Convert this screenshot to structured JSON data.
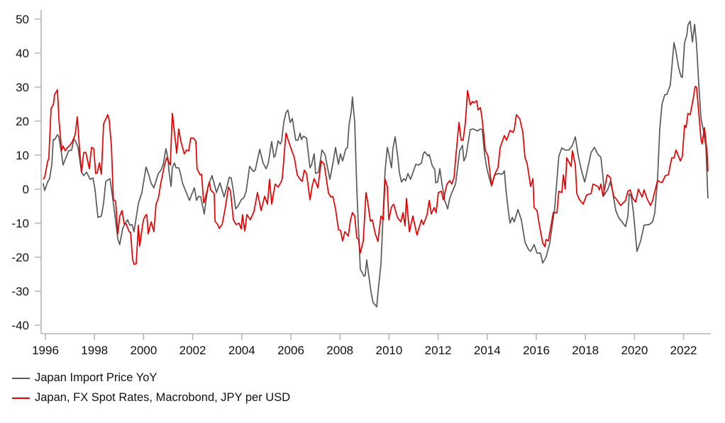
{
  "chart_data": {
    "type": "line",
    "title": "",
    "xlabel": "",
    "ylabel": "",
    "xlim": [
      1995.9,
      2023.0
    ],
    "ylim": [
      -40,
      50
    ],
    "grid": false,
    "legend_placement": "bottom-left",
    "yticks": [
      "50",
      "40",
      "30",
      "20",
      "10",
      "0",
      "-10",
      "-20",
      "-30",
      "-40"
    ],
    "ytick_values": [
      50,
      40,
      30,
      20,
      10,
      0,
      -10,
      -20,
      -30,
      -40
    ],
    "xticks": [
      "1996",
      "1998",
      "2000",
      "2002",
      "2004",
      "2006",
      "2008",
      "2010",
      "2012",
      "2014",
      "2016",
      "2018",
      "2020",
      "2022"
    ],
    "xtick_values": [
      1996,
      1998,
      2000,
      2002,
      2004,
      2006,
      2008,
      2010,
      2012,
      2014,
      2016,
      2018,
      2020,
      2022
    ],
    "series": [
      {
        "name": "Japan Import Price YoY",
        "color": "#595959",
        "x": [
          1995.91,
          1995.97,
          1996.09,
          1996.17,
          1996.26,
          1996.32,
          1996.38,
          1996.49,
          1996.55,
          1996.66,
          1996.72,
          1996.84,
          1996.95,
          1997.07,
          1997.16,
          1997.24,
          1997.33,
          1997.47,
          1997.56,
          1997.68,
          1997.82,
          1997.94,
          1998.02,
          1998.14,
          1998.28,
          1998.37,
          1998.46,
          1998.63,
          1998.75,
          1998.83,
          1998.95,
          1999.03,
          1999.15,
          1999.24,
          1999.35,
          1999.44,
          1999.53,
          1999.61,
          1999.79,
          1999.93,
          2000.1,
          2000.22,
          2000.31,
          2000.42,
          2000.6,
          2000.71,
          2000.8,
          2000.91,
          2001.0,
          2001.03,
          2001.12,
          2001.17,
          2001.26,
          2001.32,
          2001.43,
          2001.49,
          2001.58,
          2001.72,
          2001.87,
          2001.95,
          2002.07,
          2002.16,
          2002.24,
          2002.33,
          2002.47,
          2002.62,
          2002.79,
          2002.97,
          2003.11,
          2003.28,
          2003.4,
          2003.49,
          2003.57,
          2003.66,
          2003.75,
          2003.86,
          2003.98,
          2004.09,
          2004.18,
          2004.32,
          2004.47,
          2004.55,
          2004.73,
          2004.87,
          2004.99,
          2005.08,
          2005.22,
          2005.31,
          2005.36,
          2005.48,
          2005.57,
          2005.62,
          2005.71,
          2005.8,
          2005.88,
          2005.97,
          2006.06,
          2006.2,
          2006.29,
          2006.38,
          2006.43,
          2006.52,
          2006.64,
          2006.78,
          2006.84,
          2006.95,
          2007.01,
          2007.13,
          2007.27,
          2007.39,
          2007.59,
          2007.73,
          2007.82,
          2007.94,
          2008.02,
          2008.11,
          2008.23,
          2008.31,
          2008.37,
          2008.46,
          2008.51,
          2008.6,
          2008.69,
          2008.83,
          2008.98,
          2009.03,
          2009.09,
          2009.27,
          2009.35,
          2009.5,
          2009.55,
          2009.67,
          2009.76,
          2009.84,
          2009.93,
          2009.99,
          2010.1,
          2010.16,
          2010.25,
          2010.36,
          2010.42,
          2010.51,
          2010.6,
          2010.68,
          2010.77,
          2010.88,
          2011.09,
          2011.2,
          2011.32,
          2011.4,
          2011.46,
          2011.58,
          2011.64,
          2011.75,
          2011.87,
          2011.9,
          2011.98,
          2012.07,
          2012.16,
          2012.27,
          2012.39,
          2012.47,
          2012.56,
          2012.71,
          2012.79,
          2012.88,
          2012.99,
          2013.05,
          2013.14,
          2013.23,
          2013.31,
          2013.43,
          2013.51,
          2013.6,
          2013.72,
          2013.8,
          2013.89,
          2013.98,
          2014.09,
          2014.18,
          2014.29,
          2014.44,
          2014.61,
          2014.7,
          2014.76,
          2014.87,
          2014.93,
          2015.02,
          2015.1,
          2015.25,
          2015.39,
          2015.54,
          2015.68,
          2015.77,
          2015.91,
          2016.03,
          2016.17,
          2016.26,
          2016.4,
          2016.55,
          2016.75,
          2016.92,
          2017.04,
          2017.18,
          2017.33,
          2017.47,
          2017.59,
          2017.71,
          2017.85,
          2017.97,
          2018.08,
          2018.23,
          2018.37,
          2018.51,
          2018.63,
          2018.72,
          2018.77,
          2018.92,
          2019.01,
          2019.09,
          2019.24,
          2019.35,
          2019.64,
          2019.73,
          2019.79,
          2019.87,
          2019.96,
          2020.1,
          2020.25,
          2020.39,
          2020.6,
          2020.74,
          2020.83,
          2020.94,
          2021.03,
          2021.12,
          2021.23,
          2021.32,
          2021.46,
          2021.61,
          2021.69,
          2021.81,
          2021.9,
          2021.95,
          2022.04,
          2022.13,
          2022.18,
          2022.27,
          2022.36,
          2022.45,
          2022.53,
          2022.62,
          2022.71,
          2022.82,
          2022.91,
          2022.99
        ],
        "y": [
          1.7,
          -0.4,
          2.1,
          3.1,
          7.1,
          14.6,
          14.6,
          16.0,
          15.4,
          10.4,
          7.1,
          9.4,
          11.3,
          11.5,
          14.8,
          14.0,
          12.3,
          5.0,
          4.0,
          5.0,
          2.9,
          3.3,
          0,
          -8.3,
          -7.9,
          -4.2,
          2.3,
          3.1,
          -3.1,
          -7.5,
          -14.6,
          -16.3,
          -11.5,
          -10.2,
          -9.0,
          -10.6,
          -10.4,
          -12.5,
          -4.2,
          -1.0,
          6.5,
          4.0,
          1.7,
          0.4,
          4.6,
          5.6,
          7.3,
          11.9,
          8.8,
          5.6,
          0.8,
          6.3,
          7.7,
          6.3,
          6.3,
          5.0,
          1.9,
          -0.6,
          -3.3,
          -1.7,
          0.4,
          -3.3,
          -2.1,
          -2.3,
          -7.3,
          0.8,
          4.0,
          -1.0,
          1.9,
          -2.3,
          0.8,
          3.5,
          3.3,
          -0.6,
          -5.8,
          -4.8,
          -3.1,
          -2.5,
          -0.6,
          6.7,
          5.2,
          5.6,
          11.7,
          7.7,
          6.0,
          7.7,
          14.0,
          9.4,
          9.8,
          14.2,
          13.3,
          14.0,
          19.6,
          22.5,
          23.3,
          19.6,
          20.8,
          14.4,
          14.4,
          16.5,
          14.6,
          15.6,
          15.0,
          6.3,
          7.1,
          10.4,
          4.6,
          5.0,
          11.5,
          10.2,
          2.9,
          8.3,
          12.3,
          7.3,
          10.4,
          8.3,
          11.7,
          12.3,
          18.8,
          22.7,
          27.1,
          19.8,
          -0.6,
          -23.5,
          -25.6,
          -25.4,
          -20.8,
          -30.4,
          -33.3,
          -34.6,
          -30.4,
          -22.1,
          -7.5,
          5.6,
          12.3,
          10.4,
          6.3,
          11.9,
          15.4,
          9.2,
          5.0,
          2.1,
          3.1,
          2.5,
          4.6,
          2.9,
          7.3,
          7.1,
          7.7,
          10.4,
          11.0,
          9.8,
          10.2,
          7.1,
          5.6,
          1.9,
          2.1,
          6.0,
          1.5,
          -3.3,
          -5.8,
          -2.7,
          -1.0,
          1.5,
          6.0,
          11.3,
          12.9,
          8.3,
          9.8,
          14.0,
          17.5,
          17.7,
          17.5,
          17.1,
          17.7,
          17.5,
          10.4,
          6.3,
          3.1,
          1.0,
          4.0,
          4.6,
          4.4,
          5.4,
          0,
          -6.9,
          -10.0,
          -8.3,
          -9.6,
          -6.0,
          -9.0,
          -15.6,
          -17.7,
          -18.3,
          -16.3,
          -18.8,
          -18.8,
          -21.7,
          -20.0,
          -15.8,
          -5.4,
          9.8,
          12.1,
          11.5,
          11.5,
          12.9,
          15.4,
          9.8,
          5.2,
          2.1,
          5.6,
          10.8,
          12.3,
          10.2,
          9.4,
          3.5,
          -1.7,
          0,
          2.1,
          0,
          -6.3,
          -8.3,
          -11.0,
          -7.9,
          -1.3,
          -2.1,
          -6.9,
          -18.3,
          -15.2,
          -10.6,
          -10.4,
          -9.6,
          -6.9,
          2.9,
          17.5,
          25.0,
          27.7,
          27.9,
          30.6,
          43.1,
          40.4,
          35.4,
          33.1,
          32.9,
          43.1,
          45.2,
          48.3,
          49.4,
          43.3,
          48.5,
          42.5,
          30.6,
          20.8,
          16.7,
          12.5,
          -2.7
        ]
      },
      {
        "name": "Japan, FX Spot Rates, Macrobond, JPY per USD",
        "color": "#e60000",
        "x": [
          1995.91,
          1995.97,
          1996.09,
          1996.14,
          1996.23,
          1996.32,
          1996.38,
          1996.49,
          1996.55,
          1996.66,
          1996.72,
          1996.81,
          1996.9,
          1996.98,
          1997.1,
          1997.21,
          1997.3,
          1997.39,
          1997.47,
          1997.56,
          1997.65,
          1997.79,
          1997.88,
          1997.97,
          1998.05,
          1998.11,
          1998.2,
          1998.28,
          1998.37,
          1998.54,
          1998.6,
          1998.69,
          1998.77,
          1998.86,
          1998.95,
          1999.03,
          1999.12,
          1999.21,
          1999.29,
          1999.41,
          1999.47,
          1999.55,
          1999.61,
          1999.7,
          1999.79,
          1999.84,
          1999.99,
          2000.08,
          2000.13,
          2000.19,
          2000.31,
          2000.42,
          2000.51,
          2000.6,
          2000.71,
          2000.86,
          2000.94,
          2001.09,
          2001.17,
          2001.29,
          2001.35,
          2001.43,
          2001.52,
          2001.66,
          2001.75,
          2001.84,
          2001.92,
          2002.04,
          2002.13,
          2002.18,
          2002.3,
          2002.36,
          2002.45,
          2002.47,
          2002.68,
          2002.73,
          2002.88,
          2002.91,
          2003.02,
          2003.08,
          2003.2,
          2003.31,
          2003.46,
          2003.54,
          2003.66,
          2003.77,
          2003.89,
          2003.98,
          2004.03,
          2004.12,
          2004.21,
          2004.35,
          2004.5,
          2004.64,
          2004.79,
          2004.93,
          2005.05,
          2005.13,
          2005.22,
          2005.36,
          2005.48,
          2005.6,
          2005.65,
          2005.8,
          2005.91,
          2006.03,
          2006.14,
          2006.26,
          2006.38,
          2006.46,
          2006.55,
          2006.64,
          2006.78,
          2006.87,
          2006.95,
          2007.01,
          2007.1,
          2007.24,
          2007.36,
          2007.53,
          2007.62,
          2007.71,
          2007.82,
          2007.94,
          2008.02,
          2008.11,
          2008.2,
          2008.34,
          2008.43,
          2008.51,
          2008.6,
          2008.69,
          2008.75,
          2008.83,
          2008.95,
          2009.06,
          2009.12,
          2009.24,
          2009.32,
          2009.44,
          2009.55,
          2009.67,
          2009.76,
          2009.84,
          2009.93,
          2009.99,
          2010.1,
          2010.19,
          2010.34,
          2010.48,
          2010.57,
          2010.65,
          2010.71,
          2010.83,
          2010.97,
          2011.14,
          2011.32,
          2011.4,
          2011.55,
          2011.64,
          2011.72,
          2011.84,
          2011.92,
          2012.01,
          2012.13,
          2012.21,
          2012.36,
          2012.47,
          2012.56,
          2012.65,
          2012.73,
          2012.85,
          2012.94,
          2013.02,
          2013.11,
          2013.2,
          2013.31,
          2013.4,
          2013.46,
          2013.57,
          2013.63,
          2013.72,
          2013.77,
          2013.86,
          2013.92,
          2014.03,
          2014.18,
          2014.32,
          2014.44,
          2014.53,
          2014.7,
          2014.79,
          2014.93,
          2015.05,
          2015.1,
          2015.19,
          2015.33,
          2015.45,
          2015.54,
          2015.62,
          2015.77,
          2015.86,
          2015.91,
          2016.03,
          2016.12,
          2016.26,
          2016.35,
          2016.4,
          2016.49,
          2016.69,
          2016.84,
          2016.92,
          2017.04,
          2017.1,
          2017.18,
          2017.24,
          2017.42,
          2017.47,
          2017.59,
          2017.65,
          2017.76,
          2017.91,
          2018.05,
          2018.23,
          2018.31,
          2018.51,
          2018.57,
          2018.63,
          2018.72,
          2018.89,
          2019.01,
          2019.15,
          2019.24,
          2019.44,
          2019.64,
          2019.73,
          2019.82,
          2019.93,
          2020.05,
          2020.16,
          2020.31,
          2020.39,
          2020.51,
          2020.65,
          2020.74,
          2020.83,
          2020.94,
          2021.12,
          2021.26,
          2021.38,
          2021.52,
          2021.61,
          2021.69,
          2021.87,
          2021.95,
          2022.04,
          2022.1,
          2022.18,
          2022.27,
          2022.39,
          2022.47,
          2022.53,
          2022.62,
          2022.71,
          2022.76,
          2022.85,
          2022.97,
          2022.99
        ],
        "y": [
          2.9,
          3.5,
          8.1,
          9.0,
          23.8,
          24.8,
          27.9,
          29.2,
          20.8,
          11.3,
          12.7,
          11.3,
          12.3,
          12.7,
          14.0,
          16.0,
          21.3,
          11.9,
          5.0,
          10.8,
          10.8,
          6.0,
          12.3,
          11.9,
          4.6,
          4.8,
          7.7,
          4.4,
          19.2,
          21.9,
          20.2,
          12.5,
          -3.1,
          -3.5,
          -13.1,
          -7.9,
          -6.3,
          -10.2,
          -10.2,
          -12.5,
          -12.7,
          -20.4,
          -22.1,
          -21.9,
          -10.6,
          -16.7,
          -9.0,
          -7.7,
          -7.5,
          -13.1,
          -9.6,
          -12.5,
          -4.4,
          -2.7,
          2.1,
          7.3,
          9.2,
          7.1,
          22.3,
          14.6,
          10.6,
          17.7,
          14.0,
          10.4,
          11.5,
          11.3,
          15.0,
          15.0,
          14.0,
          6.0,
          4.2,
          4.4,
          -4.0,
          -3.8,
          2.1,
          -0.2,
          -1.3,
          -9.4,
          -10.4,
          -11.5,
          -10.4,
          -6.3,
          0.6,
          -0.6,
          -9.0,
          -10.4,
          -10.0,
          -11.7,
          -7.5,
          -12.3,
          -7.5,
          -9.0,
          -6.5,
          -1.0,
          -6.3,
          -2.1,
          -4.4,
          2.9,
          -4.4,
          1.5,
          0.6,
          2.1,
          3.1,
          16.5,
          14.0,
          11.5,
          9.4,
          4.2,
          2.9,
          2.3,
          5.6,
          4.6,
          -3.1,
          1.0,
          3.1,
          2.1,
          0.4,
          8.3,
          7.3,
          -1.0,
          -2.3,
          -2.1,
          -5.8,
          -11.9,
          -12.1,
          -15.2,
          -12.5,
          -13.8,
          -9.0,
          -6.9,
          -7.9,
          -14.4,
          -14.6,
          -18.8,
          -15.2,
          -1.0,
          -3.3,
          -9.4,
          -9.0,
          -13.1,
          -15.4,
          -7.9,
          -9.0,
          2.9,
          0.8,
          -9.0,
          -5.2,
          -4.4,
          -8.3,
          -9.6,
          -6.9,
          -10.8,
          -2.7,
          -12.5,
          -7.9,
          -13.5,
          -9.0,
          -10.4,
          -7.5,
          -3.3,
          -7.3,
          -5.4,
          -6.9,
          -1.0,
          -0.6,
          -3.1,
          1.5,
          2.5,
          1.5,
          3.5,
          10.4,
          19.6,
          14.4,
          14.4,
          19.6,
          29.0,
          24.8,
          25.8,
          25.4,
          26.0,
          23.3,
          24.0,
          21.9,
          16.0,
          11.5,
          9.8,
          1.0,
          4.6,
          6.3,
          12.3,
          15.8,
          14.4,
          17.3,
          16.7,
          17.5,
          21.9,
          20.6,
          16.7,
          9.2,
          7.7,
          0.8,
          3.1,
          -5.4,
          -6.3,
          -10.4,
          -15.8,
          -16.9,
          -14.8,
          -15.2,
          -6.9,
          -6.9,
          -0.6,
          -1.0,
          4.2,
          0,
          9.2,
          6.7,
          11.3,
          7.1,
          -1.3,
          -3.1,
          -4.4,
          -1.7,
          -1.3,
          1.5,
          0.8,
          -0.2,
          1.5,
          -2.1,
          4.2,
          3.5,
          -2.1,
          -2.7,
          -4.8,
          -3.3,
          -0.6,
          -0.2,
          -2.7,
          -3.8,
          0,
          -2.3,
          -0.2,
          -2.7,
          -4.8,
          -3.3,
          -0.6,
          2.5,
          1.9,
          4.0,
          4.2,
          9.2,
          9.2,
          11.5,
          8.3,
          9.8,
          18.8,
          18.1,
          22.3,
          21.9,
          26.5,
          30.2,
          30.0,
          22.3,
          14.6,
          13.3,
          18.1,
          9.8,
          5.2
        ]
      }
    ]
  }
}
